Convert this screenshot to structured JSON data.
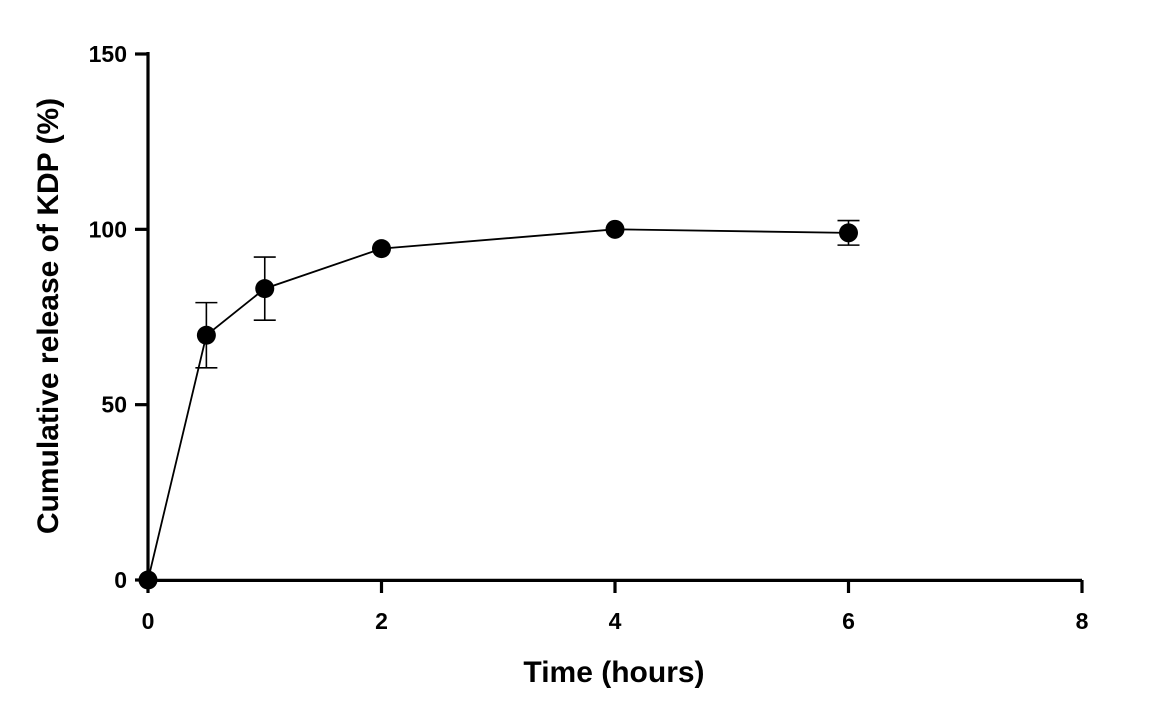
{
  "chart_data": {
    "type": "line",
    "xlabel": "Time (hours)",
    "ylabel": "Cumulative release of KDP (%)",
    "xlim": [
      0,
      8
    ],
    "ylim": [
      0,
      150
    ],
    "xticks": [
      0,
      2,
      4,
      6,
      8
    ],
    "yticks": [
      0,
      50,
      100,
      150
    ],
    "grid": false,
    "series": [
      {
        "x": [
          0,
          0.5,
          1,
          2,
          4,
          6
        ],
        "y": [
          0,
          69.8,
          83.1,
          94.5,
          100.0,
          99.0
        ],
        "err": [
          0,
          9.3,
          9.0,
          0,
          0,
          3.5
        ],
        "color": "#000000",
        "marker": "circle"
      }
    ]
  }
}
